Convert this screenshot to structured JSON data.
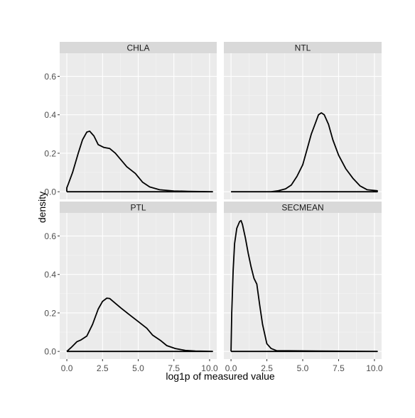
{
  "chart_data": {
    "type": "line",
    "chart_kind": "faceted density",
    "xlabel": "log1p of measured value",
    "ylabel": "density",
    "xlim": [
      -0.5,
      10.5
    ],
    "ylim": [
      -0.04,
      0.72
    ],
    "x_ticks": [
      0.0,
      2.5,
      5.0,
      7.5,
      10.0
    ],
    "x_tick_labels": [
      "0.0",
      "2.5",
      "5.0",
      "7.5",
      "10.0"
    ],
    "y_ticks": [
      0.0,
      0.2,
      0.4,
      0.6
    ],
    "y_tick_labels": [
      "0.0",
      "0.2",
      "0.4",
      "0.6"
    ],
    "grid": true,
    "colors": {
      "panel_bg": "#EBEBEB",
      "strip_bg": "#D9D9D9",
      "grid": "#FFFFFF",
      "line": "#000000",
      "text": "#1A1A1A"
    },
    "facets": [
      {
        "name": "CHLA",
        "points": [
          [
            0.0,
            0.02
          ],
          [
            0.1,
            0.04
          ],
          [
            0.4,
            0.1
          ],
          [
            0.8,
            0.2
          ],
          [
            1.1,
            0.27
          ],
          [
            1.4,
            0.31
          ],
          [
            1.6,
            0.315
          ],
          [
            1.9,
            0.29
          ],
          [
            2.2,
            0.245
          ],
          [
            2.6,
            0.23
          ],
          [
            3.0,
            0.225
          ],
          [
            3.4,
            0.2
          ],
          [
            3.8,
            0.165
          ],
          [
            4.2,
            0.13
          ],
          [
            4.8,
            0.095
          ],
          [
            5.3,
            0.05
          ],
          [
            5.8,
            0.025
          ],
          [
            6.5,
            0.01
          ],
          [
            7.5,
            0.004
          ],
          [
            8.5,
            0.002
          ],
          [
            10.2,
            0.0
          ]
        ]
      },
      {
        "name": "NTL",
        "points": [
          [
            0.0,
            0.0
          ],
          [
            1.0,
            0.0
          ],
          [
            2.0,
            0.0
          ],
          [
            2.8,
            0.0
          ],
          [
            3.3,
            0.005
          ],
          [
            3.8,
            0.015
          ],
          [
            4.2,
            0.035
          ],
          [
            4.6,
            0.08
          ],
          [
            5.0,
            0.14
          ],
          [
            5.3,
            0.22
          ],
          [
            5.6,
            0.3
          ],
          [
            5.9,
            0.36
          ],
          [
            6.1,
            0.4
          ],
          [
            6.3,
            0.41
          ],
          [
            6.5,
            0.4
          ],
          [
            6.8,
            0.35
          ],
          [
            7.1,
            0.27
          ],
          [
            7.5,
            0.19
          ],
          [
            8.0,
            0.12
          ],
          [
            8.5,
            0.07
          ],
          [
            9.0,
            0.03
          ],
          [
            9.5,
            0.01
          ],
          [
            10.2,
            0.005
          ]
        ]
      },
      {
        "name": "PTL",
        "points": [
          [
            0.0,
            0.0
          ],
          [
            0.3,
            0.02
          ],
          [
            0.7,
            0.05
          ],
          [
            1.0,
            0.06
          ],
          [
            1.4,
            0.08
          ],
          [
            1.8,
            0.14
          ],
          [
            2.2,
            0.22
          ],
          [
            2.5,
            0.26
          ],
          [
            2.8,
            0.277
          ],
          [
            3.0,
            0.275
          ],
          [
            3.4,
            0.25
          ],
          [
            3.8,
            0.225
          ],
          [
            4.4,
            0.19
          ],
          [
            5.0,
            0.155
          ],
          [
            5.6,
            0.12
          ],
          [
            6.0,
            0.085
          ],
          [
            6.6,
            0.055
          ],
          [
            7.0,
            0.03
          ],
          [
            7.6,
            0.015
          ],
          [
            8.3,
            0.005
          ],
          [
            9.0,
            0.002
          ],
          [
            10.2,
            0.0
          ]
        ]
      },
      {
        "name": "SECMEAN",
        "points": [
          [
            0.0,
            0.0
          ],
          [
            0.05,
            0.2
          ],
          [
            0.15,
            0.42
          ],
          [
            0.25,
            0.56
          ],
          [
            0.4,
            0.64
          ],
          [
            0.6,
            0.675
          ],
          [
            0.7,
            0.68
          ],
          [
            0.8,
            0.66
          ],
          [
            1.0,
            0.59
          ],
          [
            1.2,
            0.51
          ],
          [
            1.4,
            0.44
          ],
          [
            1.6,
            0.38
          ],
          [
            1.8,
            0.35
          ],
          [
            2.0,
            0.24
          ],
          [
            2.2,
            0.14
          ],
          [
            2.5,
            0.04
          ],
          [
            2.8,
            0.015
          ],
          [
            3.2,
            0.003
          ],
          [
            4.0,
            0.003
          ],
          [
            6.0,
            0.002
          ],
          [
            8.0,
            0.001
          ],
          [
            10.2,
            0.0
          ]
        ]
      }
    ]
  }
}
